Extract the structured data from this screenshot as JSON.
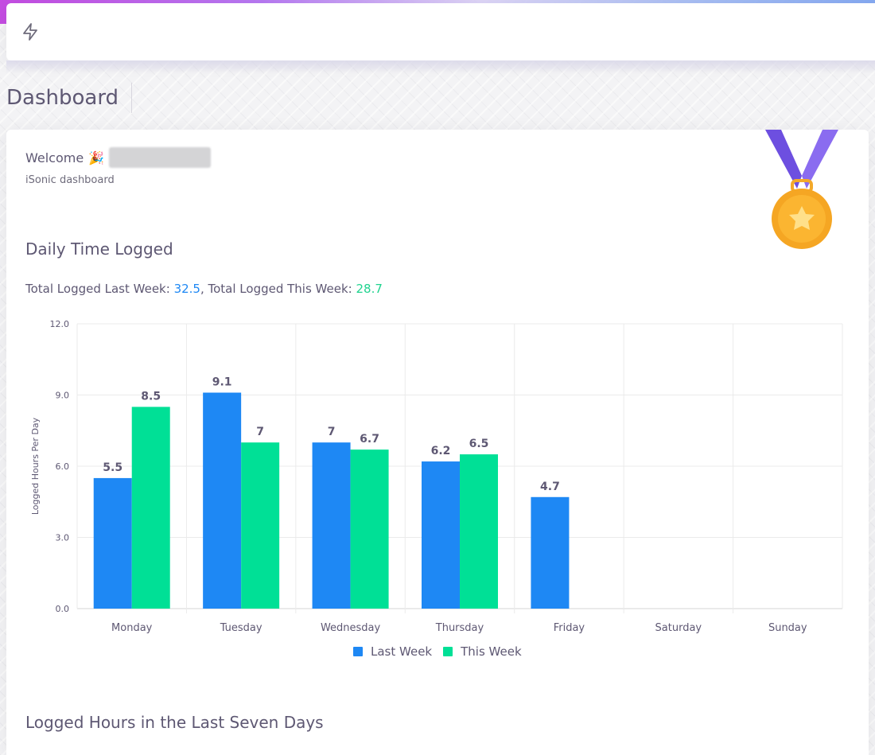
{
  "page": {
    "title": "Dashboard"
  },
  "header": {
    "icon": "bolt-icon"
  },
  "welcome": {
    "greeting": "Welcome",
    "emoji": "🎉",
    "subtitle": "iSonic dashboard"
  },
  "daily": {
    "title": "Daily Time Logged",
    "totals_prefix_last": "Total Logged Last Week: ",
    "totals_value_last": "32.5",
    "totals_sep": ", Total Logged This Week: ",
    "totals_value_this": "28.7"
  },
  "second_section": {
    "title": "Logged Hours in the Last Seven Days"
  },
  "colors": {
    "last_week": "#1e88f4",
    "this_week": "#00e096"
  },
  "chart_data": {
    "type": "bar",
    "categories": [
      "Monday",
      "Tuesday",
      "Wednesday",
      "Thursday",
      "Friday",
      "Saturday",
      "Sunday"
    ],
    "series": [
      {
        "name": "Last Week",
        "values": [
          5.5,
          9.1,
          7,
          6.2,
          4.7,
          null,
          null
        ],
        "labels": [
          "5.5",
          "9.1",
          "7",
          "6.2",
          "4.7",
          "",
          ""
        ]
      },
      {
        "name": "This Week",
        "values": [
          8.5,
          7,
          6.7,
          6.5,
          null,
          null,
          null
        ],
        "labels": [
          "8.5",
          "7",
          "6.7",
          "6.5",
          "",
          "",
          ""
        ]
      }
    ],
    "ylabel": "Logged Hours Per Day",
    "ylim": [
      0,
      12
    ],
    "yticks": [
      "0.0",
      "3.0",
      "6.0",
      "9.0",
      "12.0"
    ],
    "ytick_values": [
      0,
      3,
      6,
      9,
      12
    ],
    "grid": true,
    "legend": "bottom-center"
  }
}
